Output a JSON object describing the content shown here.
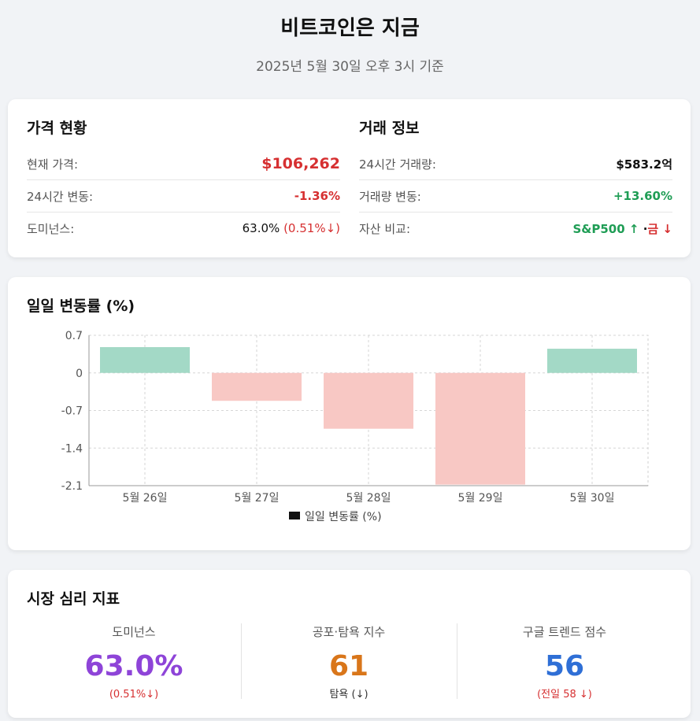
{
  "header": {
    "title": "비트코인은 지금",
    "subtitle": "2025년 5월 30일 오후 3시 기준"
  },
  "price": {
    "heading": "가격 현황",
    "rows": [
      {
        "label": "현재 가격:",
        "value": "$106,262"
      },
      {
        "label": "24시간 변동:",
        "value": "-1.36%"
      },
      {
        "label": "도미넌스:",
        "value": "63.0%",
        "extra": "(0.51%↓)"
      }
    ]
  },
  "trade": {
    "heading": "거래 정보",
    "rows": [
      {
        "label": "24시간 거래량:",
        "value": "$583.2억"
      },
      {
        "label": "거래량 변동:",
        "value": "+13.60%"
      },
      {
        "label": "자산 비교:",
        "value": "S&P500 ↑",
        "sep": "·",
        "extra": "금 ↓"
      }
    ]
  },
  "chart_section": {
    "heading": "일일 변동률 (%)"
  },
  "chart_data": {
    "type": "bar",
    "categories": [
      "5월 26일",
      "5월 27일",
      "5월 28일",
      "5월 29일",
      "5월 30일"
    ],
    "series": [
      {
        "name": "일일 변동률 (%)",
        "values": [
          0.48,
          -0.52,
          -1.04,
          -2.08,
          0.45
        ]
      }
    ],
    "yticks": [
      "0.7",
      "0",
      "-0.7",
      "-1.4",
      "-2.1"
    ],
    "ylim": [
      -2.1,
      0.7
    ],
    "grid": true,
    "legend": "bottom",
    "colors": {
      "positive": "#a3d9c6",
      "negative": "#f8c8c4"
    }
  },
  "sentiment": {
    "heading": "시장 심리 지표",
    "metrics": [
      {
        "label": "도미넌스",
        "value": "63.0%",
        "note": "(0.51%↓)",
        "color": "#8e44d8",
        "note_color": "#d63031"
      },
      {
        "label": "공포·탐욕 지수",
        "value": "61",
        "note": "탐욕 (↓)",
        "color": "#d9761a",
        "note_color": "#d63031"
      },
      {
        "label": "구글 트렌드 점수",
        "value": "56",
        "note": "(전일 58 ↓)",
        "color": "#2f6fd6",
        "note_color": "#d63031"
      }
    ]
  }
}
